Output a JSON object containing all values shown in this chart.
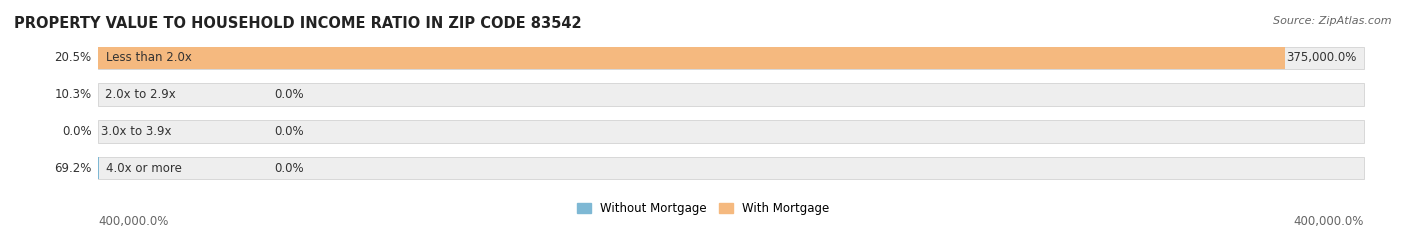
{
  "title": "PROPERTY VALUE TO HOUSEHOLD INCOME RATIO IN ZIP CODE 83542",
  "source": "Source: ZipAtlas.com",
  "categories": [
    "Less than 2.0x",
    "2.0x to 2.9x",
    "3.0x to 3.9x",
    "4.0x or more"
  ],
  "without_mortgage_pct_labels": [
    "20.5%",
    "10.3%",
    "0.0%",
    "69.2%"
  ],
  "with_mortgage_pct_labels": [
    "375,000.0%",
    "0.0%",
    "0.0%",
    "0.0%"
  ],
  "without_mortgage_values": [
    20.5,
    10.3,
    0.0,
    69.2
  ],
  "with_mortgage_values": [
    375000.0,
    0.0,
    0.0,
    0.0
  ],
  "without_mortgage_color": "#7EB8D4",
  "with_mortgage_color": "#F5B97F",
  "bar_bg_color": "#EEEEEE",
  "title_fontsize": 10.5,
  "label_fontsize": 8.5,
  "tick_fontsize": 8.5,
  "source_fontsize": 8,
  "legend_fontsize": 8.5,
  "x_max": 400000.0,
  "bottom_left_label": "400,000.0%",
  "bottom_right_label": "400,000.0%",
  "figsize": [
    14.06,
    2.33
  ],
  "dpi": 100
}
